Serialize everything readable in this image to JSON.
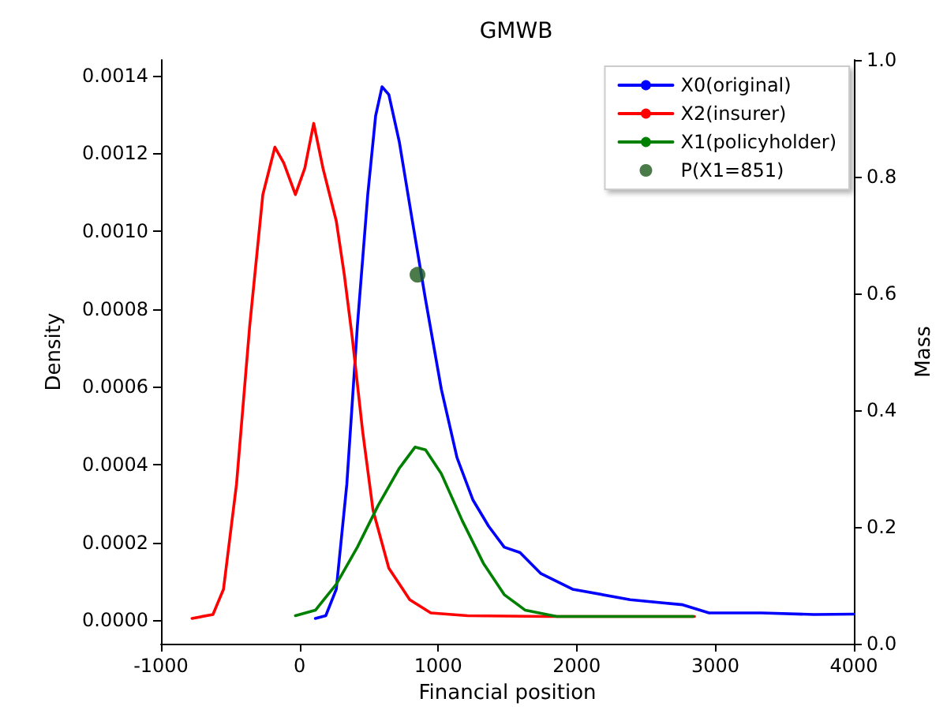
{
  "chart_data": {
    "type": "line",
    "title": "GMWB",
    "xlabel": "Financial position",
    "ylabel": "Density",
    "y2label": "Mass",
    "xlim": [
      -1000,
      4000
    ],
    "xticks": [
      -1000,
      0,
      1000,
      2000,
      3000,
      4000
    ],
    "ylim": [
      -6e-05,
      0.00144
    ],
    "yticks": [
      {
        "value": 0,
        "label": "0.0000"
      },
      {
        "value": 0.0002,
        "label": "0.0002"
      },
      {
        "value": 0.0004,
        "label": "0.0004"
      },
      {
        "value": 0.0006,
        "label": "0.0006"
      },
      {
        "value": 0.0008,
        "label": "0.0008"
      },
      {
        "value": 0.001,
        "label": "0.0010"
      },
      {
        "value": 0.0012,
        "label": "0.0012"
      },
      {
        "value": 0.0014,
        "label": "0.0014"
      }
    ],
    "y2lim": [
      0,
      1
    ],
    "y2ticks": [
      {
        "value": 0,
        "label": "0.0"
      },
      {
        "value": 0.2,
        "label": "0.2"
      },
      {
        "value": 0.4,
        "label": "0.4"
      },
      {
        "value": 0.6,
        "label": "0.6"
      },
      {
        "value": 0.8,
        "label": "0.8"
      },
      {
        "value": 1,
        "label": "1.0"
      }
    ],
    "grid": false,
    "legend": "top right",
    "marker": "none",
    "line_style": "solid",
    "series": [
      {
        "name": "X0(original)",
        "color": "#0000ff",
        "x": [
          114,
          189,
          265,
          341,
          417,
          492,
          549,
          595,
          644,
          720,
          814,
          909,
          1023,
          1136,
          1250,
          1364,
          1477,
          1591,
          1742,
          1970,
          2386,
          2765,
          2955,
          3333,
          3712,
          3997
        ],
        "values": [
          5e-06,
          1.2e-05,
          8e-05,
          0.00035,
          0.000756,
          0.001094,
          0.001297,
          0.001371,
          0.001351,
          0.001229,
          0.001026,
          0.000824,
          0.000594,
          0.000418,
          0.00031,
          0.000242,
          0.000188,
          0.000174,
          0.00012,
          8e-05,
          5.3e-05,
          4e-05,
          1.9e-05,
          1.9e-05,
          1.5e-05,
          1.6e-05
        ]
      },
      {
        "name": "X2(insurer)",
        "color": "#ff0000",
        "x": [
          -776,
          -625,
          -549,
          -455,
          -360,
          -265,
          -178,
          -114,
          -30,
          38,
          102,
          170,
          265,
          322,
          379,
          455,
          530,
          644,
          795,
          947,
          1212,
          1780,
          2850
        ],
        "values": [
          5e-06,
          1.5e-05,
          8e-05,
          0.00035,
          0.000756,
          0.001094,
          0.001216,
          0.001175,
          0.001094,
          0.001162,
          0.001277,
          0.00116,
          0.001026,
          0.00089,
          0.00073,
          0.000486,
          0.000283,
          0.000134,
          5.3e-05,
          1.9e-05,
          1.2e-05,
          1e-05,
          1e-05
        ]
      },
      {
        "name": "X1(policyholder)",
        "color": "#008000",
        "x": [
          -30,
          114,
          265,
          417,
          568,
          720,
          833,
          909,
          1023,
          1174,
          1326,
          1477,
          1629,
          1856,
          2841
        ],
        "values": [
          1.2e-05,
          2.6e-05,
          9.3e-05,
          0.000188,
          0.000296,
          0.000391,
          0.000445,
          0.000438,
          0.000377,
          0.000256,
          0.000147,
          6.6e-05,
          2.6e-05,
          1e-05,
          1e-05
        ]
      },
      {
        "name": "P(X1=851)",
        "type": "scatter",
        "axis": "y2",
        "marker": "circle",
        "color": "#1e5a1e",
        "x": [
          851
        ],
        "values": [
          0.632
        ]
      }
    ]
  }
}
